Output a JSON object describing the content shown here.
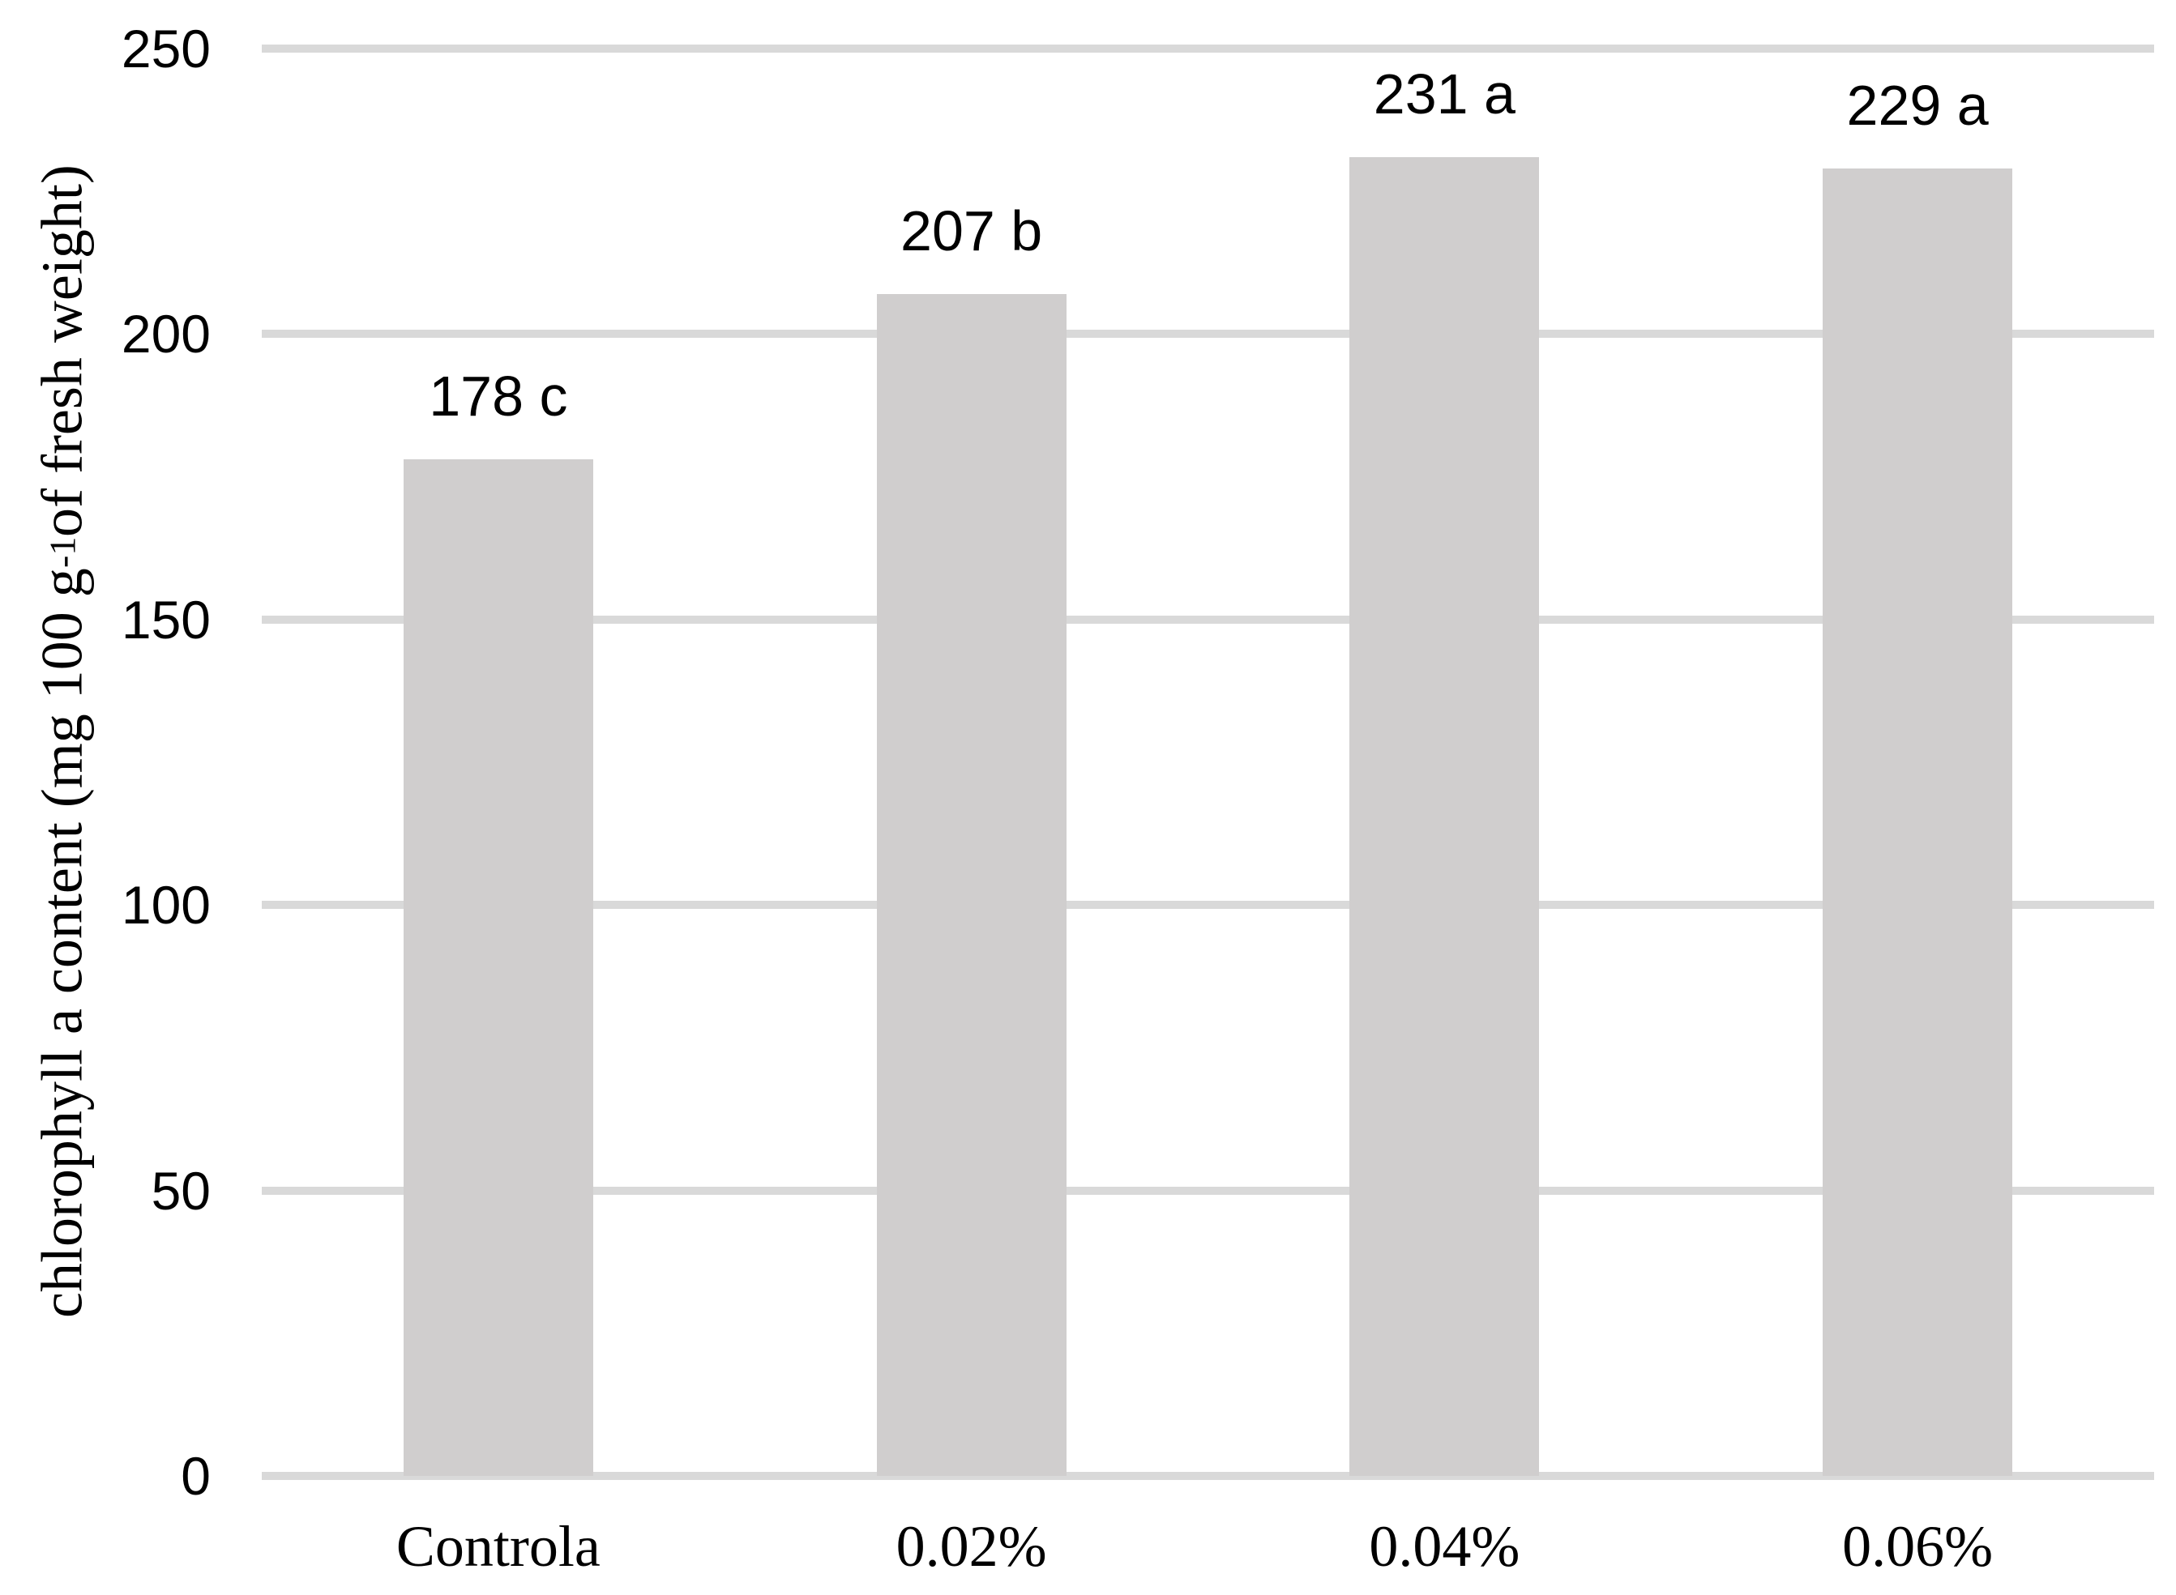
{
  "chart_data": {
    "type": "bar",
    "categories": [
      "Controla",
      "0.02%",
      "0.04%",
      "0.06%"
    ],
    "values": [
      178,
      207,
      231,
      229
    ],
    "bar_value_labels": [
      "178 c",
      "207 b",
      "231 a",
      "229 a"
    ],
    "significance_letters": [
      "c",
      "b",
      "a",
      "a"
    ],
    "title": "",
    "xlabel": "",
    "ylabel": "chlorophyll a content (mg 100 g-1 of fresh weight)",
    "ylabel_parts": {
      "prefix": "chlorophyll a content (mg 100 g",
      "superscript": "-1",
      "suffix": " of fresh weight)"
    },
    "ylim": [
      0,
      250
    ],
    "yticks": [
      0,
      50,
      100,
      150,
      200,
      250
    ],
    "ytick_labels": [
      "0",
      "50",
      "100",
      "150",
      "200",
      "250"
    ],
    "grid": "horizontal",
    "legend_position": "none",
    "colors": {
      "bar_fill": "#d0cece",
      "gridline": "#d9d9d9",
      "text": "#000000",
      "background": "#ffffff"
    }
  }
}
